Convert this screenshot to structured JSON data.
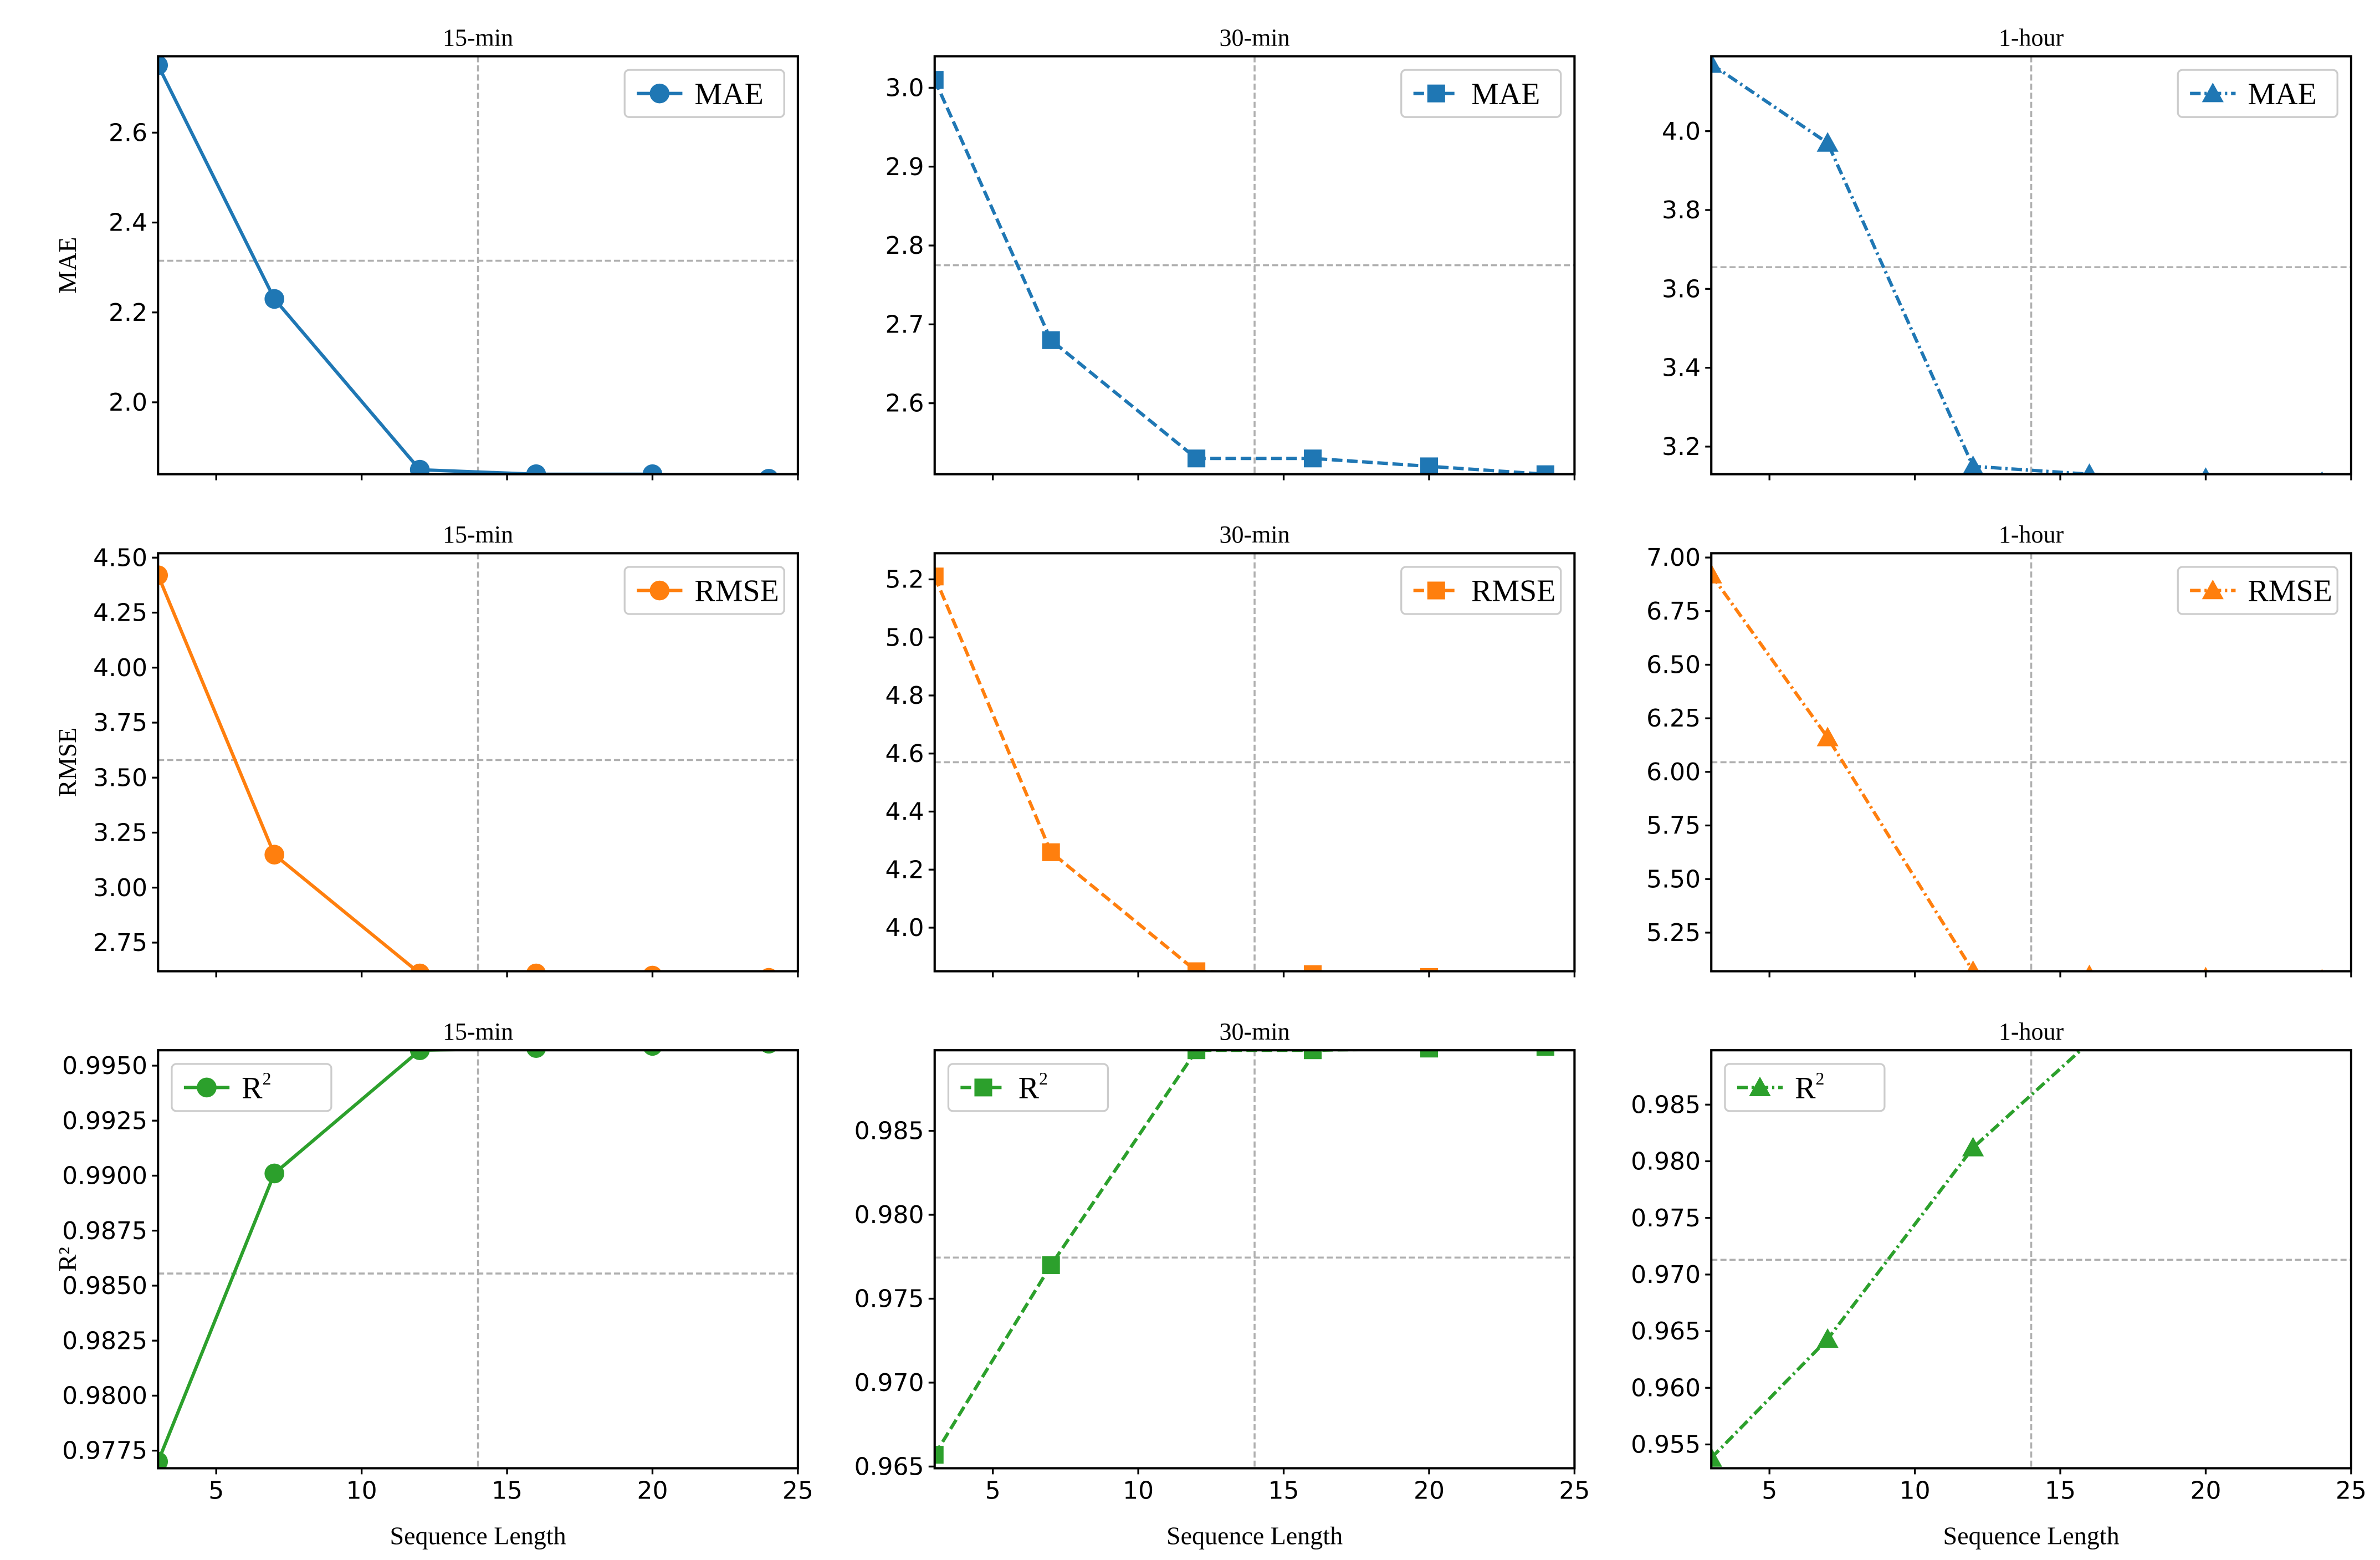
{
  "colors": {
    "mae": "#1f77b4",
    "rmse": "#ff7f0e",
    "r2": "#2ca02c",
    "ref_line": "#b0b0b0"
  },
  "shared_x_label": "Sequence Length",
  "chart_data": [
    {
      "type": "line",
      "panel": "mae-15min",
      "title": "15-min",
      "ylabel": "MAE",
      "xlabel": "",
      "series": [
        {
          "name": "MAE",
          "x": [
            3,
            7,
            12,
            16,
            20,
            24
          ],
          "values": [
            2.75,
            2.23,
            1.85,
            1.84,
            1.84,
            1.83
          ]
        }
      ],
      "marker": "circle",
      "linestyle": "solid",
      "color_key": "mae",
      "xlim": [
        3,
        25
      ],
      "ylim": [
        1.84,
        2.77
      ],
      "xticks": [
        5,
        10,
        15,
        20,
        25
      ],
      "xtick_labels_visible": false,
      "yticks": [
        2.0,
        2.2,
        2.4,
        2.6
      ],
      "ytick_labels": [
        "2.0",
        "2.2",
        "2.4",
        "2.6"
      ],
      "hline": 2.315,
      "vline": 14,
      "legend_position": "upper right"
    },
    {
      "type": "line",
      "panel": "mae-30min",
      "title": "30-min",
      "ylabel": "",
      "xlabel": "",
      "series": [
        {
          "name": "MAE",
          "x": [
            3,
            7,
            12,
            16,
            20,
            24
          ],
          "values": [
            3.01,
            2.68,
            2.53,
            2.53,
            2.52,
            2.51
          ]
        }
      ],
      "marker": "square",
      "linestyle": "dashed",
      "color_key": "mae",
      "xlim": [
        3,
        25
      ],
      "ylim": [
        2.51,
        3.04
      ],
      "xticks": [
        5,
        10,
        15,
        20,
        25
      ],
      "xtick_labels_visible": false,
      "yticks": [
        2.6,
        2.7,
        2.8,
        2.9,
        3.0
      ],
      "ytick_labels": [
        "2.6",
        "2.7",
        "2.8",
        "2.9",
        "3.0"
      ],
      "hline": 2.775,
      "vline": 14,
      "legend_position": "upper right"
    },
    {
      "type": "line",
      "panel": "mae-1hour",
      "title": "1-hour",
      "ylabel": "",
      "xlabel": "",
      "series": [
        {
          "name": "MAE",
          "x": [
            3,
            7,
            12,
            16,
            20,
            24
          ],
          "values": [
            4.17,
            3.97,
            3.15,
            3.13,
            3.12,
            3.11
          ]
        }
      ],
      "marker": "triangle",
      "linestyle": "dashdot",
      "color_key": "mae",
      "xlim": [
        3,
        25
      ],
      "ylim": [
        3.13,
        4.19
      ],
      "xticks": [
        5,
        10,
        15,
        20,
        25
      ],
      "xtick_labels_visible": false,
      "yticks": [
        3.2,
        3.4,
        3.6,
        3.8,
        4.0
      ],
      "ytick_labels": [
        "3.2",
        "3.4",
        "3.6",
        "3.8",
        "4.0"
      ],
      "hline": 3.655,
      "vline": 14,
      "legend_position": "upper right"
    },
    {
      "type": "line",
      "panel": "rmse-15min",
      "title": "15-min",
      "ylabel": "RMSE",
      "xlabel": "",
      "series": [
        {
          "name": "RMSE",
          "x": [
            3,
            7,
            12,
            16,
            20,
            24
          ],
          "values": [
            4.42,
            3.15,
            2.61,
            2.61,
            2.6,
            2.59
          ]
        }
      ],
      "marker": "circle",
      "linestyle": "solid",
      "color_key": "rmse",
      "xlim": [
        3,
        25
      ],
      "ylim": [
        2.62,
        4.52
      ],
      "xticks": [
        5,
        10,
        15,
        20,
        25
      ],
      "xtick_labels_visible": false,
      "yticks": [
        2.75,
        3.0,
        3.25,
        3.5,
        3.75,
        4.0,
        4.25,
        4.5
      ],
      "ytick_labels": [
        "2.75",
        "3.00",
        "3.25",
        "3.50",
        "3.75",
        "4.00",
        "4.25",
        "4.50"
      ],
      "hline": 3.58,
      "vline": 14,
      "legend_position": "upper right"
    },
    {
      "type": "line",
      "panel": "rmse-30min",
      "title": "30-min",
      "ylabel": "",
      "xlabel": "",
      "series": [
        {
          "name": "RMSE",
          "x": [
            3,
            7,
            12,
            16,
            20,
            24
          ],
          "values": [
            5.21,
            4.26,
            3.85,
            3.84,
            3.83,
            3.82
          ]
        }
      ],
      "marker": "square",
      "linestyle": "dashed",
      "color_key": "rmse",
      "xlim": [
        3,
        25
      ],
      "ylim": [
        3.85,
        5.29
      ],
      "xticks": [
        5,
        10,
        15,
        20,
        25
      ],
      "xtick_labels_visible": false,
      "yticks": [
        4.0,
        4.2,
        4.4,
        4.6,
        4.8,
        5.0,
        5.2
      ],
      "ytick_labels": [
        "4.0",
        "4.2",
        "4.4",
        "4.6",
        "4.8",
        "5.0",
        "5.2"
      ],
      "hline": 4.57,
      "vline": 14,
      "legend_position": "upper right"
    },
    {
      "type": "line",
      "panel": "rmse-1hour",
      "title": "1-hour",
      "ylabel": "",
      "xlabel": "",
      "series": [
        {
          "name": "RMSE",
          "x": [
            3,
            7,
            12,
            16,
            20,
            24
          ],
          "values": [
            6.92,
            6.16,
            5.07,
            5.05,
            5.04,
            5.03
          ]
        }
      ],
      "marker": "triangle",
      "linestyle": "dashdot",
      "color_key": "rmse",
      "xlim": [
        3,
        25
      ],
      "ylim": [
        5.07,
        7.02
      ],
      "xticks": [
        5,
        10,
        15,
        20,
        25
      ],
      "xtick_labels_visible": false,
      "yticks": [
        5.25,
        5.5,
        5.75,
        6.0,
        6.25,
        6.5,
        6.75,
        7.0
      ],
      "ytick_labels": [
        "5.25",
        "5.50",
        "5.75",
        "6.00",
        "6.25",
        "6.50",
        "6.75",
        "7.00"
      ],
      "hline": 6.045,
      "vline": 14,
      "legend_position": "upper right"
    },
    {
      "type": "line",
      "panel": "r2-15min",
      "title": "15-min",
      "ylabel": "R²",
      "xlabel": "Sequence Length",
      "series": [
        {
          "name": "R2",
          "x": [
            3,
            7,
            12,
            16,
            20,
            24
          ],
          "values": [
            0.977,
            0.9901,
            0.9957,
            0.9958,
            0.9959,
            0.996
          ]
        }
      ],
      "marker": "circle",
      "linestyle": "solid",
      "color_key": "r2",
      "xlim": [
        3,
        25
      ],
      "ylim": [
        0.9767,
        0.9957
      ],
      "xticks": [
        5,
        10,
        15,
        20,
        25
      ],
      "xtick_labels": [
        "5",
        "10",
        "15",
        "20",
        "25"
      ],
      "xtick_labels_visible": true,
      "yticks": [
        0.9775,
        0.98,
        0.9825,
        0.985,
        0.9875,
        0.99,
        0.9925,
        0.995
      ],
      "ytick_labels": [
        "0.9775",
        "0.9800",
        "0.9825",
        "0.9850",
        "0.9875",
        "0.9900",
        "0.9925",
        "0.9950"
      ],
      "hline": 0.98555,
      "vline": 14,
      "legend_position": "upper left"
    },
    {
      "type": "line",
      "panel": "r2-30min",
      "title": "30-min",
      "ylabel": "",
      "xlabel": "Sequence Length",
      "series": [
        {
          "name": "R2",
          "x": [
            3,
            7,
            12,
            16,
            20,
            24
          ],
          "values": [
            0.9657,
            0.977,
            0.9898,
            0.9898,
            0.9899,
            0.99
          ]
        }
      ],
      "marker": "square",
      "linestyle": "dashed",
      "color_key": "r2",
      "xlim": [
        3,
        25
      ],
      "ylim": [
        0.9649,
        0.9898
      ],
      "xticks": [
        5,
        10,
        15,
        20,
        25
      ],
      "xtick_labels": [
        "5",
        "10",
        "15",
        "20",
        "25"
      ],
      "xtick_labels_visible": true,
      "yticks": [
        0.965,
        0.97,
        0.975,
        0.98,
        0.985
      ],
      "ytick_labels": [
        "0.965",
        "0.970",
        "0.975",
        "0.980",
        "0.985"
      ],
      "hline": 0.97745,
      "vline": 14,
      "legend_position": "upper left"
    },
    {
      "type": "line",
      "panel": "r2-1hour",
      "title": "1-hour",
      "ylabel": "",
      "xlabel": "Sequence Length",
      "series": [
        {
          "name": "R2",
          "x": [
            3,
            7,
            12,
            16,
            20,
            24
          ],
          "values": [
            0.9538,
            0.9643,
            0.9812,
            0.9905,
            0.9906,
            0.9907
          ]
        }
      ],
      "marker": "triangle",
      "linestyle": "dashdot",
      "color_key": "r2",
      "xlim": [
        3,
        25
      ],
      "ylim": [
        0.9529,
        0.9898
      ],
      "xticks": [
        5,
        10,
        15,
        20,
        25
      ],
      "xtick_labels": [
        "5",
        "10",
        "15",
        "20",
        "25"
      ],
      "xtick_labels_visible": true,
      "yticks": [
        0.955,
        0.96,
        0.965,
        0.97,
        0.975,
        0.98,
        0.985
      ],
      "ytick_labels": [
        "0.955",
        "0.960",
        "0.965",
        "0.970",
        "0.975",
        "0.980",
        "0.985"
      ],
      "hline": 0.9713,
      "vline": 14,
      "legend_position": "upper left"
    }
  ]
}
